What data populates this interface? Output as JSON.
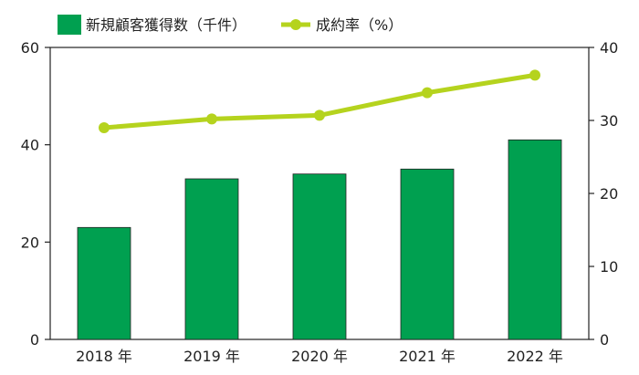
{
  "chart_data": {
    "type": "bar",
    "categories": [
      "2018 年",
      "2019 年",
      "2020 年",
      "2021 年",
      "2022 年"
    ],
    "series": [
      {
        "name": "新規顧客獲得数（千件）",
        "type": "bar",
        "axis": "left",
        "color": "#00a050",
        "values": [
          23,
          33,
          34,
          35,
          41
        ]
      },
      {
        "name": "成約率（%）",
        "type": "line",
        "axis": "right",
        "color": "#b5d31e",
        "values": [
          29,
          30.2,
          30.7,
          33.8,
          36.2
        ]
      }
    ],
    "y_left": {
      "range": [
        0,
        60
      ],
      "ticks": [
        "0",
        "20",
        "40",
        "60"
      ]
    },
    "y_right": {
      "range": [
        0,
        40
      ],
      "ticks": [
        "0",
        "10",
        "20",
        "30",
        "40"
      ]
    },
    "legend": {
      "placement": "top-left"
    },
    "grid": false
  }
}
